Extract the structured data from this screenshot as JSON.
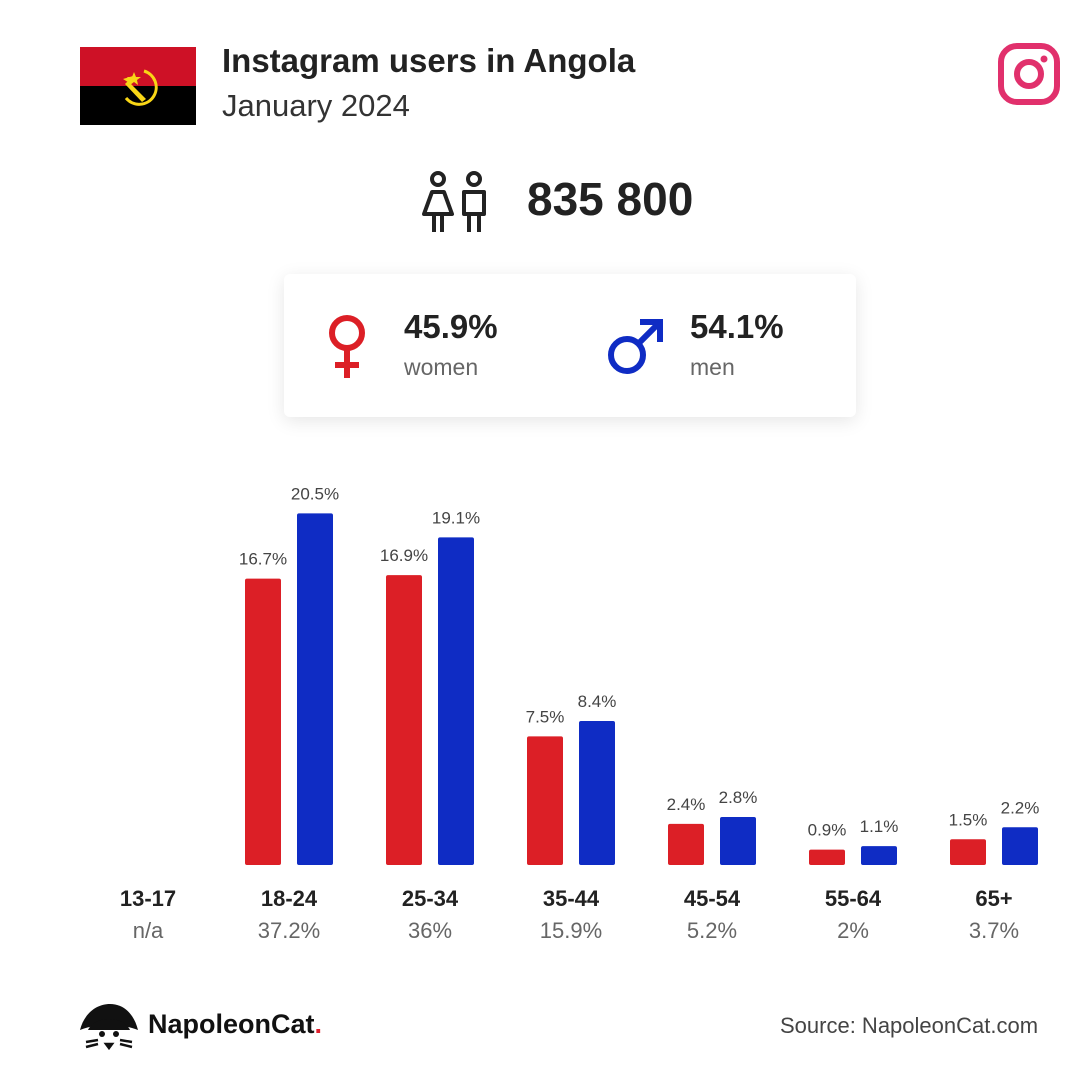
{
  "header": {
    "title": "Instagram users in Angola",
    "subtitle": "January 2024"
  },
  "icons": {
    "flag": "angola-flag-icon",
    "platform": "instagram-icon",
    "users": "people-icon",
    "female": "female-symbol-icon",
    "male": "male-symbol-icon",
    "brand": "napoleoncat-logo-icon"
  },
  "colors": {
    "women": "#dc1f26",
    "men": "#0f2cc4",
    "instagram": "#e1306c",
    "flag_red": "#ce1126",
    "flag_black": "#000000",
    "flag_yellow": "#f9d616"
  },
  "total": {
    "value": "835 800"
  },
  "gender": {
    "women": {
      "pct": "45.9%",
      "label": "women"
    },
    "men": {
      "pct": "54.1%",
      "label": "men"
    }
  },
  "chart_data": {
    "type": "bar",
    "categories": [
      "13-17",
      "18-24",
      "25-34",
      "35-44",
      "45-54",
      "55-64",
      "65+"
    ],
    "category_totals": [
      "n/a",
      "37.2%",
      "36%",
      "15.9%",
      "5.2%",
      "2%",
      "3.7%"
    ],
    "series": [
      {
        "values": [
          null,
          16.7,
          16.9,
          7.5,
          2.4,
          0.9,
          1.5
        ],
        "labels": [
          "",
          "16.7%",
          "16.9%",
          "7.5%",
          "2.4%",
          "0.9%",
          "1.5%"
        ],
        "color": "#dc1f26"
      },
      {
        "values": [
          null,
          20.5,
          19.1,
          8.4,
          2.8,
          1.1,
          2.2
        ],
        "labels": [
          "",
          "20.5%",
          "19.1%",
          "8.4%",
          "2.8%",
          "1.1%",
          "2.2%"
        ],
        "color": "#0f2cc4"
      }
    ],
    "grid": false,
    "legend": "none"
  },
  "footer": {
    "brand_name": "NapoleonCat",
    "brand_dot": ".",
    "source": "Source: NapoleonCat.com"
  }
}
